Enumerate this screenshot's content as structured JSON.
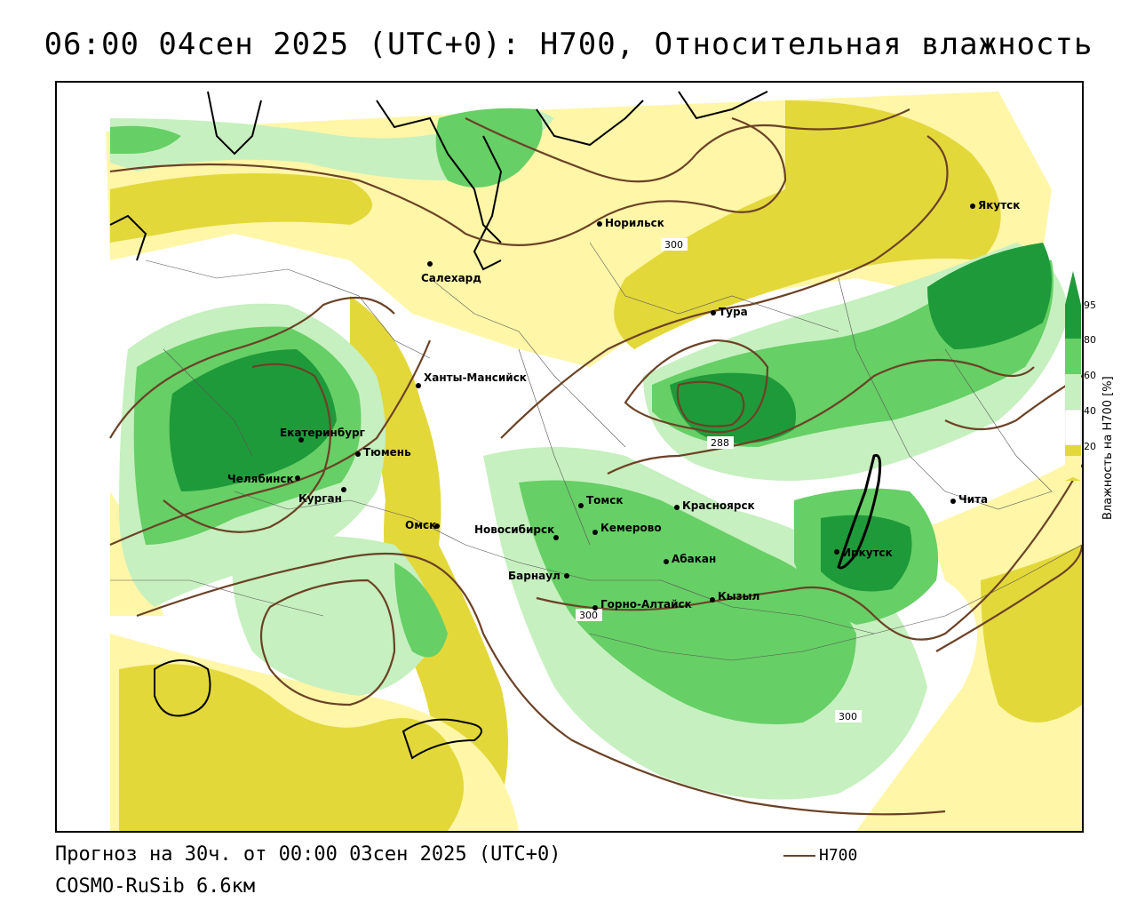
{
  "title": "06:00 04сен 2025 (UTC+0): H700, Относительная влажность",
  "footer": {
    "forecast": "Прогноз на 30ч. от 00:00 03сен 2025 (UTC+0)",
    "model": "COSMO-RuSib 6.6км"
  },
  "line_legend": {
    "label": "H700",
    "color": "#6b4226"
  },
  "colorbar": {
    "label": "Влажность на H700 [%]",
    "ticks": [
      "20",
      "40",
      "60",
      "80",
      "95"
    ],
    "colors": {
      "very_dry": "#e3d83a",
      "dry": "#fff6a8",
      "neutral": "#ffffff",
      "moist": "#c6f0bf",
      "wet": "#66cf66",
      "very_wet": "#1f9a3a"
    }
  },
  "cities": [
    {
      "name": "Норильск"
    },
    {
      "name": "Якутск"
    },
    {
      "name": "Салехард"
    },
    {
      "name": "Тура"
    },
    {
      "name": "Ханты-Мансийск"
    },
    {
      "name": "Екатеринбург"
    },
    {
      "name": "Тюмень"
    },
    {
      "name": "Челябинск"
    },
    {
      "name": "Курган"
    },
    {
      "name": "Омск"
    },
    {
      "name": "Томск"
    },
    {
      "name": "Красноярск"
    },
    {
      "name": "Новосибирск"
    },
    {
      "name": "Кемерово"
    },
    {
      "name": "Абакан"
    },
    {
      "name": "Барнаул"
    },
    {
      "name": "Горно-Алтайск"
    },
    {
      "name": "Кызыл"
    },
    {
      "name": "Иркутск"
    },
    {
      "name": "Чита"
    }
  ],
  "isolines": [
    {
      "value": "300"
    },
    {
      "value": "288"
    },
    {
      "value": "300"
    },
    {
      "value": "300"
    }
  ]
}
